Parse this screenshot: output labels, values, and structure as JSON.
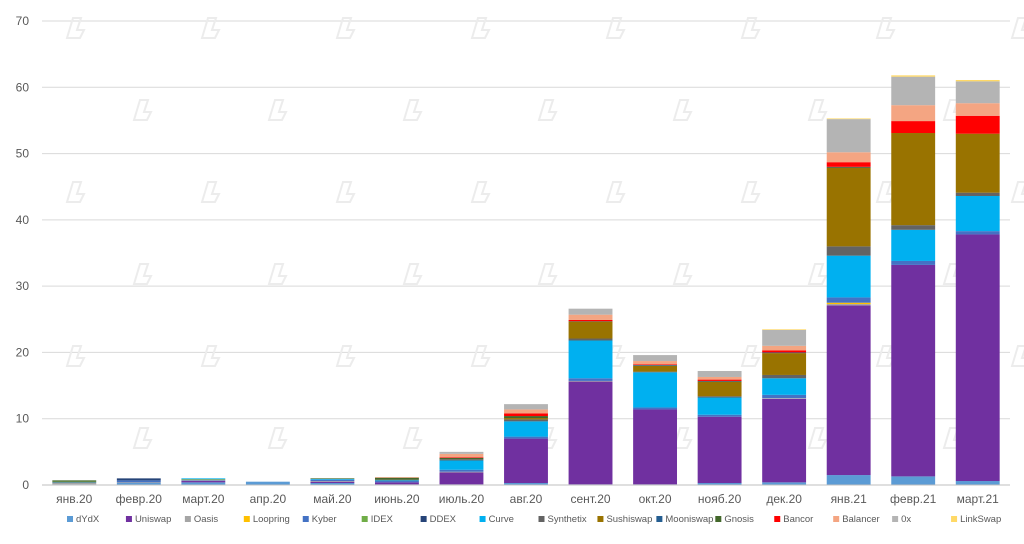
{
  "chart_data": {
    "type": "bar",
    "stacked": true,
    "categories": [
      "янв.20",
      "февр.20",
      "март.20",
      "апр.20",
      "май.20",
      "июнь.20",
      "июль.20",
      "авг.20",
      "сент.20",
      "окт.20",
      "нояб.20",
      "дек.20",
      "янв.21",
      "февр.21",
      "март.21"
    ],
    "ylim": [
      0,
      70
    ],
    "yticks": [
      0,
      10,
      20,
      30,
      40,
      50,
      60,
      70
    ],
    "grid": true,
    "legend_position": "bottom",
    "series": [
      {
        "name": "dYdX",
        "color": "#5b9bd5",
        "values": [
          0.1,
          0.3,
          0.4,
          0.5,
          0.3,
          0.1,
          0.1,
          0.3,
          0.1,
          0.1,
          0.3,
          0.4,
          1.5,
          1.3,
          0.6
        ]
      },
      {
        "name": "Uniswap",
        "color": "#7030a0",
        "values": [
          0,
          0,
          0.2,
          0,
          0.2,
          0.3,
          1.8,
          6.7,
          15.5,
          11.3,
          10,
          12.6,
          25.6,
          31.9,
          37.2
        ]
      },
      {
        "name": "Oasis",
        "color": "#a5a5a5",
        "values": [
          0.2,
          0.1,
          0.1,
          0,
          0.1,
          0,
          0.1,
          0,
          0.1,
          0,
          0,
          0.1,
          0.2,
          0,
          0
        ]
      },
      {
        "name": "Loopring",
        "color": "#ffc000",
        "values": [
          0,
          0,
          0,
          0,
          0,
          0,
          0,
          0,
          0,
          0,
          0,
          0,
          0.2,
          0,
          0
        ]
      },
      {
        "name": "Kyber",
        "color": "#4472c4",
        "values": [
          0.1,
          0.3,
          0.1,
          0,
          0.2,
          0.2,
          0.3,
          0.3,
          0.4,
          0.3,
          0.3,
          0.5,
          0.8,
          0.6,
          0.5
        ]
      },
      {
        "name": "IDEX",
        "color": "#70ad47",
        "values": [
          0.1,
          0,
          0.1,
          0,
          0,
          0,
          0,
          0,
          0,
          0,
          0,
          0,
          0,
          0,
          0
        ]
      },
      {
        "name": "DDEX",
        "color": "#264478",
        "values": [
          0,
          0.3,
          0,
          0,
          0,
          0,
          0,
          0,
          0,
          0,
          0,
          0,
          0,
          0,
          0
        ]
      },
      {
        "name": "Curve",
        "color": "#00b0f0",
        "values": [
          0,
          0,
          0.1,
          0,
          0.1,
          0.1,
          1.4,
          2.3,
          5.7,
          5.3,
          2.6,
          2.5,
          6.3,
          4.7,
          5.3
        ]
      },
      {
        "name": "Synthetix",
        "color": "#636363",
        "values": [
          0,
          0,
          0,
          0,
          0,
          0.1,
          0.2,
          0.3,
          0.3,
          0.1,
          0.2,
          0.5,
          1.4,
          0.7,
          0.5
        ]
      },
      {
        "name": "Sushiswap",
        "color": "#997300",
        "values": [
          0,
          0,
          0,
          0,
          0,
          0,
          0,
          0.2,
          2.5,
          0.9,
          2.2,
          3.3,
          11.9,
          13.9,
          8.9
        ]
      },
      {
        "name": "Mooniswap",
        "color": "#255e91",
        "values": [
          0,
          0,
          0,
          0,
          0,
          0,
          0,
          0,
          0,
          0.1,
          0.1,
          0.1,
          0.1,
          0,
          0
        ]
      },
      {
        "name": "Gnosis",
        "color": "#43682b",
        "values": [
          0.2,
          0,
          0,
          0,
          0.1,
          0.3,
          0.2,
          0.3,
          0.1,
          0,
          0,
          0,
          0,
          0,
          0
        ]
      },
      {
        "name": "Bancor",
        "color": "#ff0000",
        "values": [
          0,
          0,
          0,
          0,
          0,
          0,
          0.1,
          0.4,
          0.2,
          0.1,
          0.2,
          0.3,
          0.7,
          1.8,
          2.7
        ]
      },
      {
        "name": "Balancer",
        "color": "#f4a582",
        "values": [
          0,
          0,
          0,
          0,
          0,
          0.1,
          0.5,
          0.6,
          0.8,
          0.5,
          0.4,
          0.7,
          1.5,
          2.4,
          1.9
        ]
      },
      {
        "name": "0x",
        "color": "#b4b4b4",
        "values": [
          0,
          0,
          0,
          0,
          0,
          0,
          0.3,
          0.8,
          0.9,
          0.9,
          0.9,
          2.4,
          5,
          4.3,
          3.3
        ]
      },
      {
        "name": "LinkSwap",
        "color": "#ffd966",
        "values": [
          0,
          0,
          0,
          0,
          0,
          0,
          0,
          0,
          0,
          0,
          0,
          0.1,
          0.1,
          0.2,
          0.2
        ]
      }
    ]
  }
}
